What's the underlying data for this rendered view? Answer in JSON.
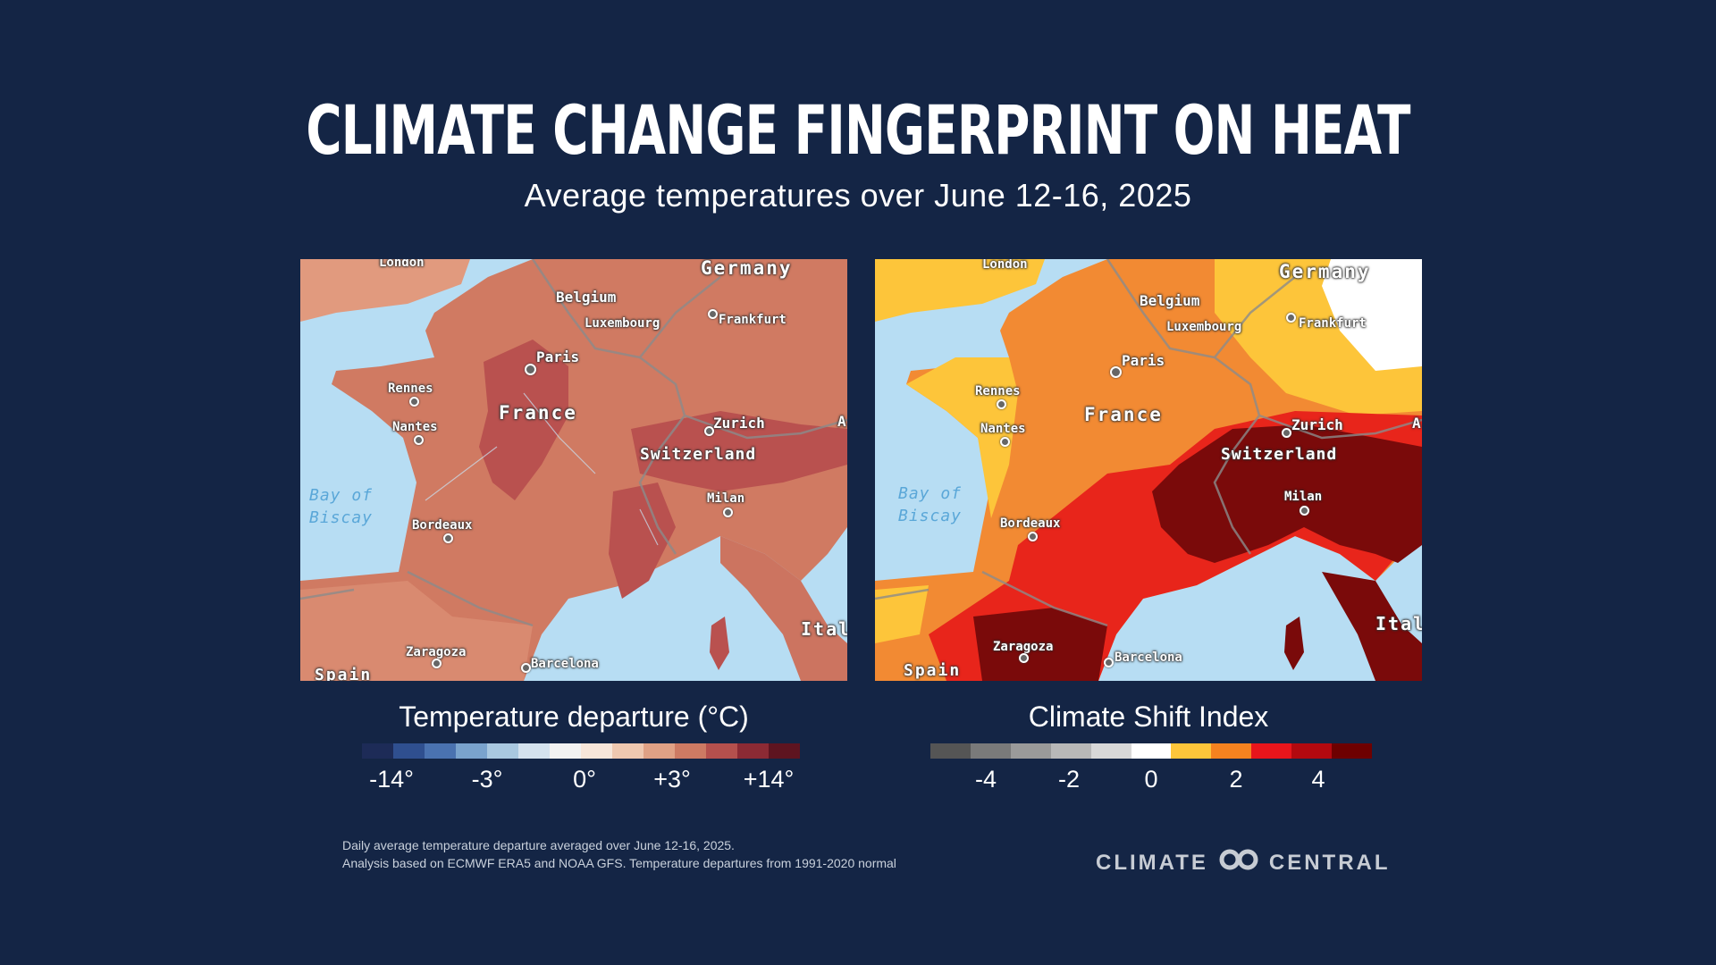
{
  "header": {
    "title": "CLIMATE CHANGE FINGERPRINT ON HEAT",
    "subtitle": "Average temperatures over June 12-16, 2025"
  },
  "maps": {
    "left": {
      "labels": {
        "london": "London",
        "germany": "Germany",
        "belgium": "Belgium",
        "luxembourg": "Luxembourg",
        "frankfurt": "Frankfurt",
        "paris": "Paris",
        "rennes": "Rennes",
        "france": "France",
        "nantes": "Nantes",
        "zurich": "Zurich",
        "switzerland": "Switzerland",
        "milan": "Milan",
        "bay": "Bay of",
        "biscay": "Biscay",
        "bordeaux": "Bordeaux",
        "zaragoza": "Zaragoza",
        "barcelona": "Barcelona",
        "spain": "Spain",
        "italy": "Italy",
        "a": "A"
      }
    },
    "right": {
      "labels": {
        "london": "London",
        "germany": "Germany",
        "belgium": "Belgium",
        "luxembourg": "Luxembourg",
        "frankfurt": "Frankfurt",
        "paris": "Paris",
        "rennes": "Rennes",
        "france": "France",
        "nantes": "Nantes",
        "zurich": "Zurich",
        "switzerland": "Switzerland",
        "milan": "Milan",
        "bay": "Bay of",
        "biscay": "Biscay",
        "bordeaux": "Bordeaux",
        "zaragoza": "Zaragoza",
        "barcelona": "Barcelona",
        "spain": "Spain",
        "italy": "Italy",
        "a": "A"
      }
    }
  },
  "legends": {
    "temperature": {
      "title": "Temperature departure (°C)",
      "colors": [
        "#1d2b57",
        "#2f4f8f",
        "#4a72b0",
        "#7aa3cd",
        "#a9c8e0",
        "#d4e2ee",
        "#f2f2f2",
        "#f7e6da",
        "#efc8b0",
        "#e0a185",
        "#cd7a63",
        "#b5504d",
        "#8c2a34",
        "#5e1420"
      ],
      "ticks": [
        "-14°",
        "-3°",
        "0°",
        "+3°",
        "+14°"
      ]
    },
    "csi": {
      "title": "Climate Shift Index",
      "colors": [
        "#555555",
        "#7a7a7a",
        "#9a9a9a",
        "#b8b8b8",
        "#d8d8d8",
        "#ffffff",
        "#fdc53a",
        "#f5821f",
        "#e8151b",
        "#b3090f",
        "#6e0000"
      ],
      "ticks": [
        "-4",
        "-2",
        "0",
        "2",
        "4"
      ]
    }
  },
  "footer": {
    "note_line1": "Daily average temperature departure averaged over June 12-16, 2025.",
    "note_line2": "Analysis based on ECMWF ERA5 and NOAA GFS. Temperature departures from 1991-2020 normal",
    "brand_left": "CLIMATE",
    "brand_right": "CENTRAL"
  }
}
